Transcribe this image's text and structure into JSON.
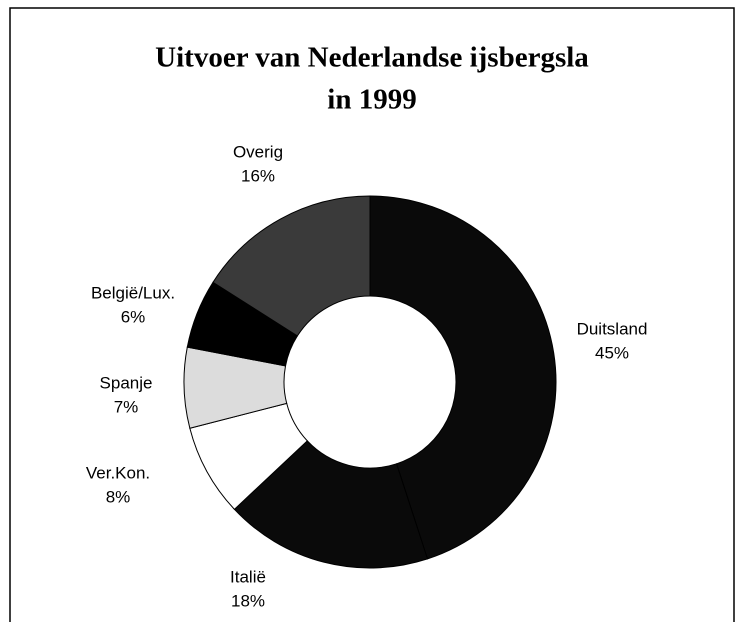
{
  "chart_data": {
    "type": "donut",
    "title": [
      "Uitvoer van Nederlandse ijsbergsla",
      "in 1999"
    ],
    "categories": [
      "Duitsland",
      "Italië",
      "Ver.Kon.",
      "Spanje",
      "België/Lux.",
      "Overig"
    ],
    "values": [
      45,
      18,
      8,
      7,
      6,
      16
    ],
    "value_labels": [
      "45%",
      "18%",
      "8%",
      "7%",
      "6%",
      "16%"
    ],
    "colors": [
      "#0a0a0a",
      "#0a0a0a",
      "#ffffff",
      "#dcdcdc",
      "#000000",
      "#3a3a3a"
    ]
  }
}
